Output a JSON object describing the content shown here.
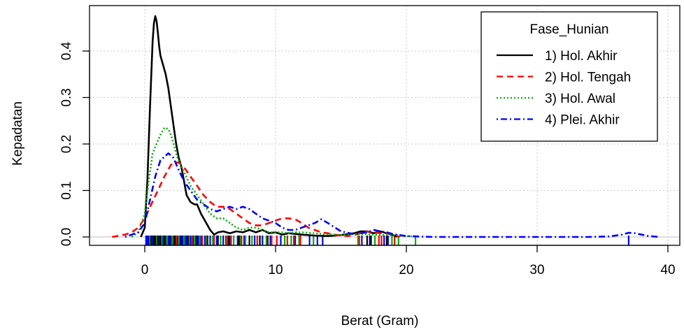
{
  "chart_data": {
    "type": "line",
    "title": "",
    "xlabel": "Berat (Gram)",
    "ylabel": "Kepadatan",
    "xlim": [
      -4.5,
      41
    ],
    "ylim": [
      -0.01,
      0.485
    ],
    "x_ticks": [
      0,
      10,
      20,
      30,
      40
    ],
    "x_tick_labels": [
      "0",
      "10",
      "20",
      "30",
      "40"
    ],
    "y_ticks": [
      0.0,
      0.1,
      0.2,
      0.3,
      0.4
    ],
    "y_tick_labels": [
      "0.0",
      "0.1",
      "0.2",
      "0.3",
      "0.4"
    ],
    "grid": true,
    "legend": {
      "title": "Fase_Hunian",
      "placement": "top-right"
    },
    "series": [
      {
        "name": "1) Hol. Akhir",
        "color": "#000000",
        "dash": "solid",
        "x": [
          -0.3,
          0,
          0.2,
          0.4,
          0.6,
          0.7,
          0.8,
          0.9,
          1.0,
          1.1,
          1.2,
          1.4,
          1.6,
          1.8,
          2.0,
          2.2,
          2.4,
          2.6,
          2.8,
          3.0,
          3.2,
          3.5,
          3.8,
          4.0,
          4.3,
          4.6,
          5.0,
          5.3,
          5.6,
          6.0,
          6.5,
          7.0,
          7.5,
          8.0,
          8.5,
          9.0,
          9.5,
          10.0,
          10.5,
          11.0,
          12.0,
          13.0,
          14.0,
          15.0,
          16.0,
          16.5,
          17.0,
          17.5,
          18.0,
          18.5,
          19.0,
          19.3
        ],
        "y": [
          0.0,
          0.02,
          0.12,
          0.28,
          0.42,
          0.46,
          0.475,
          0.465,
          0.44,
          0.41,
          0.39,
          0.37,
          0.35,
          0.32,
          0.28,
          0.24,
          0.2,
          0.17,
          0.15,
          0.12,
          0.09,
          0.075,
          0.07,
          0.07,
          0.05,
          0.035,
          0.015,
          0.005,
          0.01,
          0.012,
          0.008,
          0.012,
          0.01,
          0.015,
          0.01,
          0.015,
          0.008,
          0.01,
          0.005,
          0.008,
          0.005,
          0.003,
          0.002,
          0.004,
          0.008,
          0.012,
          0.012,
          0.008,
          0.012,
          0.008,
          0.004,
          0.0
        ]
      },
      {
        "name": "2) Hol. Tengah",
        "color": "#ff0000",
        "dash": "dashed",
        "x": [
          -2.5,
          -1.5,
          -1.0,
          -0.5,
          0,
          0.5,
          1.0,
          1.5,
          2.0,
          2.3,
          2.6,
          3.0,
          3.5,
          4.0,
          4.5,
          5.0,
          5.5,
          6.0,
          6.5,
          7.0,
          7.5,
          8.0,
          8.5,
          9.0,
          9.5,
          10.0,
          10.5,
          11.0,
          11.5,
          12.0,
          12.5,
          13.0,
          13.5,
          14.0,
          14.5,
          15.0,
          15.5,
          16.0,
          16.5,
          17.0,
          17.5,
          18.0,
          18.5,
          19.0,
          19.5
        ],
        "y": [
          0.0,
          0.005,
          0.01,
          0.02,
          0.04,
          0.07,
          0.1,
          0.13,
          0.155,
          0.16,
          0.16,
          0.15,
          0.13,
          0.11,
          0.09,
          0.075,
          0.065,
          0.065,
          0.06,
          0.05,
          0.04,
          0.03,
          0.025,
          0.025,
          0.03,
          0.035,
          0.04,
          0.04,
          0.038,
          0.03,
          0.02,
          0.015,
          0.01,
          0.008,
          0.005,
          0.003,
          0.002,
          0.004,
          0.008,
          0.012,
          0.01,
          0.008,
          0.008,
          0.006,
          0.0
        ]
      },
      {
        "name": "3) Hol. Awal",
        "color": "#00b000",
        "dash": "dotted",
        "x": [
          -1.0,
          -0.5,
          0,
          0.3,
          0.6,
          0.9,
          1.2,
          1.5,
          1.8,
          2.0,
          2.2,
          2.5,
          3.0,
          3.5,
          4.0,
          4.5,
          5.0,
          5.5,
          6.0,
          6.5,
          7.0,
          7.5,
          8.0,
          8.5,
          9.0,
          9.5,
          10.0,
          10.5,
          11.0,
          11.5,
          12.0,
          13.0,
          14.0,
          15.0,
          16.0,
          17.0,
          18.0,
          19.0,
          20.0,
          21.0
        ],
        "y": [
          0.0,
          0.01,
          0.05,
          0.12,
          0.18,
          0.2,
          0.22,
          0.235,
          0.232,
          0.22,
          0.2,
          0.17,
          0.14,
          0.11,
          0.09,
          0.07,
          0.05,
          0.04,
          0.04,
          0.03,
          0.02,
          0.015,
          0.02,
          0.02,
          0.015,
          0.01,
          0.01,
          0.01,
          0.008,
          0.01,
          0.01,
          0.008,
          0.006,
          0.004,
          0.006,
          0.006,
          0.004,
          0.004,
          0.002,
          0.0
        ]
      },
      {
        "name": "4) Plei. Akhir",
        "color": "#0000ff",
        "dash": "dotdash",
        "x": [
          -1.5,
          -1.0,
          -0.5,
          0,
          0.4,
          0.8,
          1.2,
          1.6,
          1.8,
          2.0,
          2.2,
          2.5,
          3.0,
          3.5,
          4.0,
          4.5,
          5.0,
          5.5,
          6.0,
          6.5,
          7.0,
          7.5,
          8.0,
          8.5,
          9.0,
          9.5,
          10.0,
          10.5,
          11.0,
          11.5,
          12.0,
          12.5,
          13.0,
          13.5,
          14.0,
          15.0,
          16.0,
          16.5,
          17.0,
          17.5,
          18.0,
          18.5,
          19.0,
          20.0,
          22.0,
          25.0,
          28.0,
          31.0,
          34.0,
          35.5,
          36.0,
          36.5,
          37.0,
          37.5,
          38.0,
          38.5,
          39.3
        ],
        "y": [
          0.0,
          0.005,
          0.01,
          0.03,
          0.08,
          0.13,
          0.165,
          0.175,
          0.18,
          0.175,
          0.17,
          0.15,
          0.12,
          0.1,
          0.08,
          0.07,
          0.06,
          0.055,
          0.06,
          0.065,
          0.06,
          0.065,
          0.06,
          0.05,
          0.04,
          0.035,
          0.03,
          0.02,
          0.015,
          0.015,
          0.02,
          0.025,
          0.03,
          0.038,
          0.03,
          0.012,
          0.006,
          0.008,
          0.01,
          0.015,
          0.012,
          0.01,
          0.006,
          0.002,
          0.0,
          0.0,
          0.0,
          0.0,
          0.0,
          0.001,
          0.003,
          0.005,
          0.009,
          0.008,
          0.005,
          0.002,
          0.0
        ]
      }
    ],
    "rug": [
      {
        "color": "#0000ff",
        "x": [
          0.1,
          0.2,
          0.3,
          0.4,
          0.5,
          0.6,
          0.7,
          0.8,
          0.9,
          1.0,
          1.1,
          1.2,
          1.3,
          1.4,
          1.5,
          1.6,
          1.7,
          1.8,
          1.9,
          2.0,
          2.1,
          2.2,
          2.3,
          2.4,
          2.5,
          2.6,
          2.7,
          2.8,
          2.9,
          3.0,
          3.1,
          3.2,
          3.3,
          3.5,
          3.7,
          3.9,
          4.1,
          4.3,
          4.6,
          5.0,
          5.5,
          6.0,
          6.5,
          7.1,
          7.6,
          8.4,
          9.0,
          9.6,
          10.4,
          11.5,
          12.6,
          13.2,
          13.6,
          16.6,
          17.2,
          18.3,
          18.6,
          37.0
        ]
      },
      {
        "color": "#00b000",
        "x": [
          0.4,
          0.9,
          1.3,
          1.7,
          2.1,
          2.6,
          3.0,
          3.4,
          3.8,
          4.2,
          4.7,
          5.2,
          5.8,
          6.3,
          6.8,
          7.3,
          7.7,
          8.2,
          8.8,
          9.3,
          10.7,
          11.2,
          11.8,
          12.9,
          16.3,
          17.6,
          18.9,
          19.4,
          20.7
        ]
      },
      {
        "color": "#ff0000",
        "x": [
          2.4,
          3.6,
          4.4,
          5.3,
          6.2,
          6.6,
          7.4,
          8.6,
          9.7,
          10.1,
          10.9,
          11.4,
          11.9,
          16.4,
          17.9,
          18.1,
          19.1
        ]
      },
      {
        "color": "#000000",
        "x": [
          0.5,
          0.7,
          0.8,
          1.0,
          1.2,
          1.5,
          1.9,
          2.3,
          2.8,
          3.3,
          4.0,
          4.8,
          5.6,
          6.4,
          7.2,
          8.0,
          8.8,
          9.4,
          17.0,
          17.3,
          18.5
        ]
      }
    ]
  }
}
